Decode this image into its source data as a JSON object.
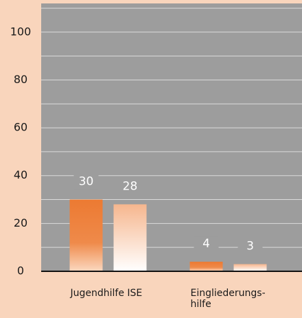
{
  "chart_data": {
    "type": "bar",
    "categories": [
      "Jugendhilfe ISE",
      "Eingliederungs-\nhilfe"
    ],
    "series": [
      {
        "color": "#ec7a32",
        "values": [
          30,
          4
        ]
      },
      {
        "color": "#f6b68e",
        "values": [
          28,
          3
        ]
      }
    ],
    "ylim": [
      0,
      112
    ],
    "yticks": [
      0,
      20,
      40,
      60,
      80,
      100
    ],
    "grid_lines": [
      10,
      20,
      30,
      40,
      50,
      60,
      70,
      80,
      90,
      100,
      110
    ],
    "grid": true
  }
}
